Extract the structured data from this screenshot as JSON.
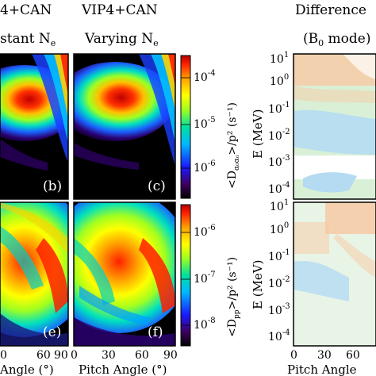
{
  "figure": {
    "col1": {
      "title_line1": "4+CAN",
      "title_line2": "stant N",
      "title_sub": "e"
    },
    "col2": {
      "title_line1": "VIP4+CAN",
      "title_line2": "Varying N",
      "title_sub": "e"
    },
    "col3": {
      "title_line1": "Difference",
      "title_line2": "(B",
      "title_sub": "0",
      "title_line2_tail": " mode)"
    },
    "panel_labels": {
      "b": "(b)",
      "c": "(c)",
      "e": "(e)",
      "f": "(f)"
    },
    "colorbar_top": {
      "label": "<D",
      "label_sub": "α₀α₀",
      "label_tail": ">/p² (s⁻¹)",
      "tick_base": "10",
      "tick_exps": [
        "-4",
        "-5",
        "-6"
      ]
    },
    "colorbar_bottom": {
      "label": "<D",
      "label_sub": "pp",
      "label_tail": ">/p² (s⁻¹)",
      "tick_base": "10",
      "tick_exps": [
        "-6",
        "-7",
        "-8"
      ]
    },
    "y_axis_right": {
      "label": "E (MeV)",
      "tick_base": "10",
      "tick_exps": [
        "1",
        "0",
        "-1",
        "-2",
        "-3",
        "-4"
      ]
    },
    "x_axis_col1": {
      "ticks": [
        "0",
        "60",
        "90"
      ],
      "label": "Angle (°)"
    },
    "x_axis_col2": {
      "ticks": [
        "0",
        "30",
        "60",
        "90"
      ],
      "label": "Pitch Angle (°)"
    },
    "x_axis_col3": {
      "ticks": [
        "0",
        "30",
        "60"
      ],
      "label": "Pitch Angle"
    },
    "colors": {
      "cmap": [
        "#000000",
        "#3d0060",
        "#1a1aff",
        "#00b8ff",
        "#00e0a0",
        "#a0ff20",
        "#ffff00",
        "#ffa000",
        "#ff2000",
        "#b00000"
      ],
      "diff_pos": "#f7c9a4",
      "diff_neg": "#b4dbf2",
      "diff_neutral": "#d9f0d6"
    }
  },
  "chart_data": [
    {
      "type": "heatmap",
      "panel": "(b)",
      "title": "4+CAN / stant Ne",
      "xlabel": "Angle (°)",
      "xlim": [
        0,
        90
      ],
      "colorbar": "top"
    },
    {
      "type": "heatmap",
      "panel": "(c)",
      "title": "VIP4+CAN / Varying Ne",
      "xlabel": "",
      "xlim": [
        0,
        90
      ],
      "colorbar": "top",
      "colorbar_ticks": [
        "10^-4",
        "10^-5",
        "10^-6"
      ]
    },
    {
      "type": "heatmap",
      "panel": "(e)",
      "xlabel": "Angle (°)",
      "xlim": [
        0,
        90
      ],
      "colorbar": "bottom"
    },
    {
      "type": "heatmap",
      "panel": "(f)",
      "xlabel": "Pitch Angle (°)",
      "xlim": [
        0,
        90
      ],
      "colorbar": "bottom",
      "colorbar_ticks": [
        "10^-6",
        "10^-7",
        "10^-8"
      ]
    },
    {
      "type": "heatmap",
      "panel": "difference-top",
      "title": "Difference (B0 mode)",
      "ylabel": "E (MeV)",
      "yscale": "log",
      "ylim": [
        0.0001,
        10
      ],
      "xlim": [
        0,
        90
      ]
    },
    {
      "type": "heatmap",
      "panel": "difference-bottom",
      "xlabel": "Pitch Angle",
      "ylabel": "E (MeV)",
      "yscale": "log",
      "ylim": [
        0.0001,
        10
      ],
      "xlim": [
        0,
        90
      ]
    }
  ]
}
